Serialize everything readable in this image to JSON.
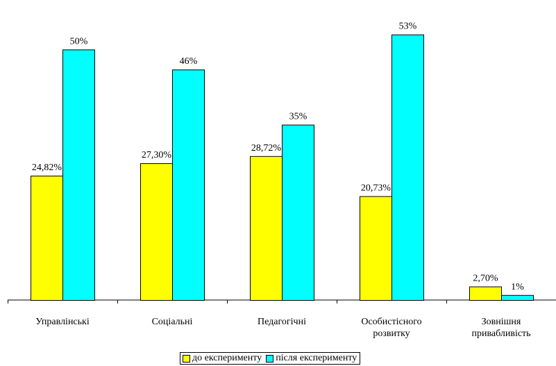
{
  "chart_data": {
    "type": "bar",
    "categories": [
      [
        "Управлінські"
      ],
      [
        "Соціальні"
      ],
      [
        "Педагогічні"
      ],
      [
        "Особистісного",
        "розвитку"
      ],
      [
        "Зовнішня",
        "привабливість"
      ]
    ],
    "series": [
      {
        "name": "до експерименту",
        "color": "#ffff00",
        "values": [
          24.82,
          27.3,
          28.72,
          20.73,
          2.7
        ],
        "labels": [
          "24,82%",
          "27,30%",
          "28,72%",
          "20,73%",
          "2,70%"
        ]
      },
      {
        "name": "після експерименту",
        "color": "#00ffff",
        "values": [
          50,
          46,
          35,
          53,
          1
        ],
        "labels": [
          "50%",
          "46%",
          "35%",
          "53%",
          "1%"
        ]
      }
    ],
    "ylim": [
      0,
      56
    ],
    "grid": false,
    "legend_position": "bottom"
  }
}
